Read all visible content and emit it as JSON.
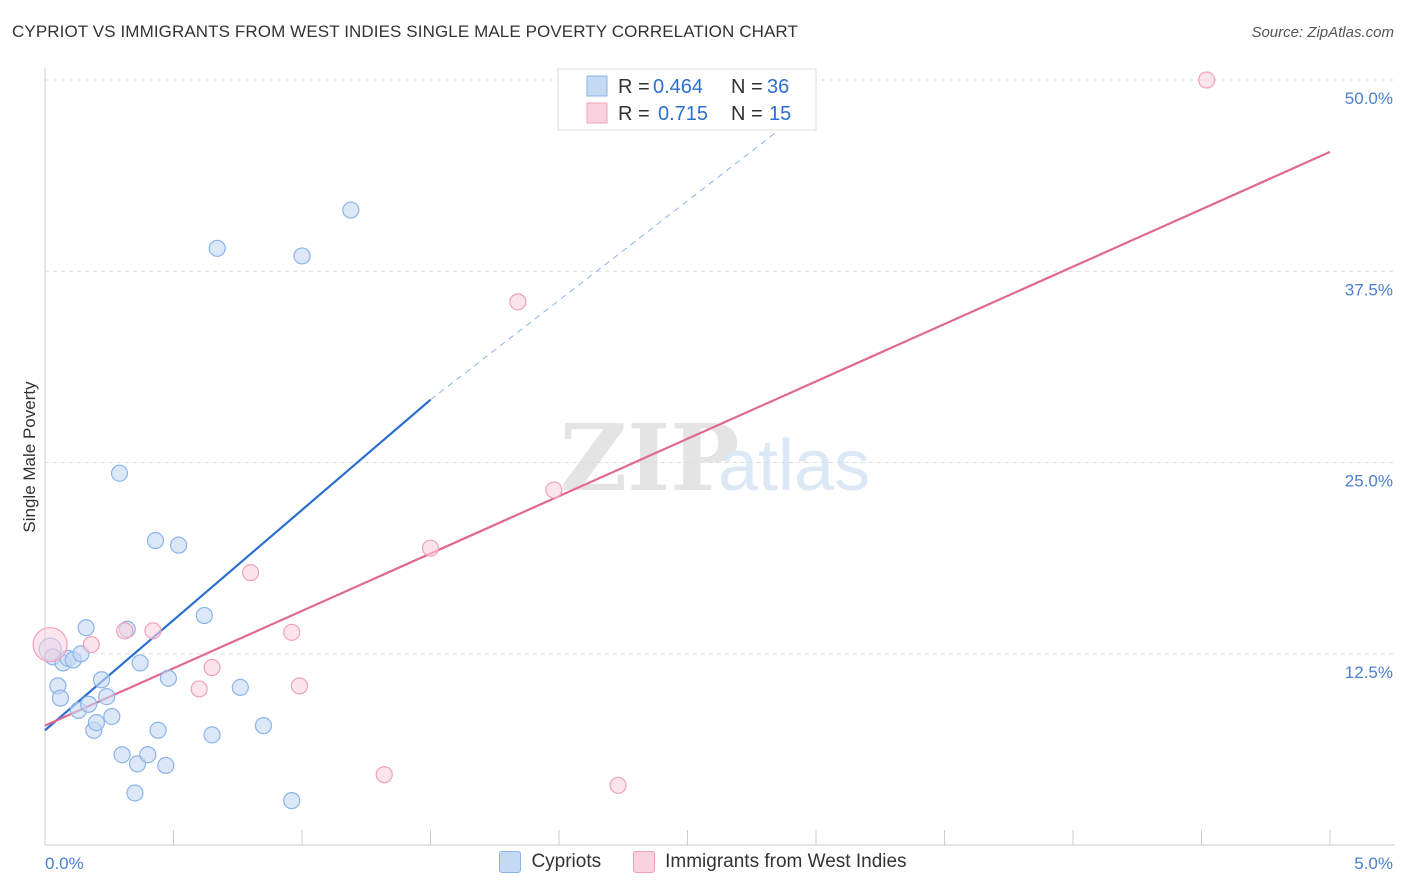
{
  "title": "CYPRIOT VS IMMIGRANTS FROM WEST INDIES SINGLE MALE POVERTY CORRELATION CHART",
  "source": "Source: ZipAtlas.com",
  "watermark": {
    "zip": "ZIP",
    "atlas": "atlas"
  },
  "chart_data": {
    "type": "scatter",
    "title": "CYPRIOT VS IMMIGRANTS FROM WEST INDIES SINGLE MALE POVERTY CORRELATION CHART",
    "xlabel": "",
    "ylabel": "Single Male Poverty",
    "xlim": [
      0.0,
      5.0
    ],
    "ylim": [
      0.0,
      50.0
    ],
    "x_tick_labels": [
      "0.0%",
      "5.0%"
    ],
    "y_ticks": [
      12.5,
      25.0,
      37.5,
      50.0
    ],
    "y_tick_labels": [
      "12.5%",
      "25.0%",
      "37.5%",
      "50.0%"
    ],
    "grid": true,
    "legend_stats": [
      {
        "r_label": "R =",
        "r_value": "0.464",
        "n_label": "N =",
        "n_value": "36"
      },
      {
        "r_label": "R =",
        "r_value": "0.715",
        "n_label": "N =",
        "n_value": "15"
      }
    ],
    "series": [
      {
        "name": "Cypriots",
        "color": "#8ab4ea",
        "fill": "#c5d9f3",
        "line_color": "#2b6fd1",
        "points": [
          [
            0.02,
            12.8
          ],
          [
            0.03,
            12.3
          ],
          [
            0.05,
            10.4
          ],
          [
            0.06,
            9.6
          ],
          [
            0.07,
            11.9
          ],
          [
            0.09,
            12.2
          ],
          [
            0.11,
            12.1
          ],
          [
            0.13,
            8.8
          ],
          [
            0.14,
            12.5
          ],
          [
            0.16,
            14.2
          ],
          [
            0.17,
            9.2
          ],
          [
            0.19,
            7.5
          ],
          [
            0.2,
            8.0
          ],
          [
            0.22,
            10.8
          ],
          [
            0.24,
            9.7
          ],
          [
            0.26,
            8.4
          ],
          [
            0.29,
            24.3
          ],
          [
            0.3,
            5.9
          ],
          [
            0.32,
            14.1
          ],
          [
            0.36,
            5.3
          ],
          [
            0.37,
            11.9
          ],
          [
            0.4,
            5.9
          ],
          [
            0.43,
            19.9
          ],
          [
            0.47,
            5.2
          ],
          [
            0.48,
            10.9
          ],
          [
            0.52,
            19.6
          ],
          [
            0.62,
            15.0
          ],
          [
            0.65,
            7.2
          ],
          [
            0.67,
            39.0
          ],
          [
            0.76,
            10.3
          ],
          [
            0.85,
            7.8
          ],
          [
            0.96,
            2.9
          ],
          [
            1.0,
            38.5
          ],
          [
            1.19,
            41.5
          ],
          [
            0.35,
            3.4
          ],
          [
            0.44,
            7.5
          ]
        ],
        "trend": {
          "x": [
            0.0,
            1.5
          ],
          "y": [
            7.5,
            29.1
          ],
          "dashed_extension_x": [
            1.5,
            2.9
          ],
          "dashed_extension_y": [
            29.1,
            47.3
          ]
        }
      },
      {
        "name": "Immigrants from West Indies",
        "color": "#f0a0bc",
        "fill": "#f9d2df",
        "line_color": "#e06892",
        "points": [
          [
            0.02,
            13.1
          ],
          [
            0.18,
            13.1
          ],
          [
            0.31,
            14.0
          ],
          [
            0.42,
            14.0
          ],
          [
            0.6,
            10.2
          ],
          [
            0.65,
            11.6
          ],
          [
            0.8,
            17.8
          ],
          [
            0.96,
            13.9
          ],
          [
            0.99,
            10.4
          ],
          [
            1.32,
            4.6
          ],
          [
            1.5,
            19.4
          ],
          [
            1.84,
            35.5
          ],
          [
            1.98,
            23.2
          ],
          [
            2.23,
            3.9
          ],
          [
            4.52,
            50.0
          ]
        ],
        "trend": {
          "x": [
            0.0,
            5.0
          ],
          "y": [
            7.8,
            45.3
          ]
        }
      }
    ]
  }
}
